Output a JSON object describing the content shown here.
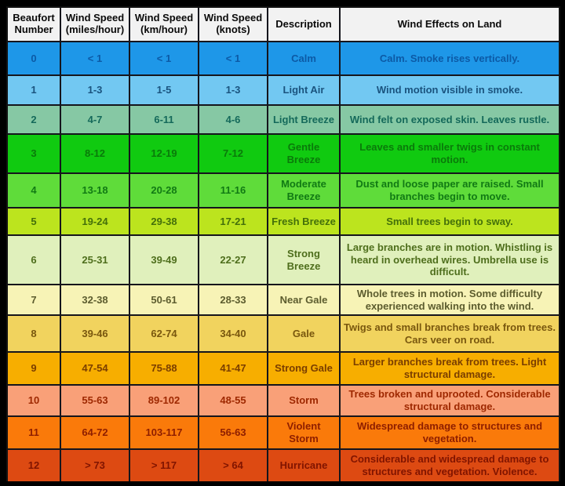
{
  "chart_data": {
    "type": "table",
    "columns": [
      "Beaufort Number",
      "Wind Speed (miles/hour)",
      "Wind Speed (km/hour)",
      "Wind Speed (knots)",
      "Description",
      "Wind Effects on Land"
    ],
    "rows": [
      {
        "number": "0",
        "mph": "< 1",
        "kmh": "< 1",
        "knots": "< 1",
        "description": "Calm",
        "effects": "Calm. Smoke rises vertically.",
        "bg": "#1e97e8",
        "fg": "#0c5aa6"
      },
      {
        "number": "1",
        "mph": "1-3",
        "kmh": "1-5",
        "knots": "1-3",
        "description": "Light Air",
        "effects": "Wind motion visible in smoke.",
        "bg": "#72c8f2",
        "fg": "#1a537e"
      },
      {
        "number": "2",
        "mph": "4-7",
        "kmh": "6-11",
        "knots": "4-6",
        "description": "Light Breeze",
        "effects": "Wind felt on exposed skin. Leaves rustle.",
        "bg": "#86c8a4",
        "fg": "#14695a"
      },
      {
        "number": "3",
        "mph": "8-12",
        "kmh": "12-19",
        "knots": "7-12",
        "description": "Gentle Breeze",
        "effects": "Leaves and smaller twigs in constant motion.",
        "bg": "#10ca10",
        "fg": "#0a7a0a"
      },
      {
        "number": "4",
        "mph": "13-18",
        "kmh": "20-28",
        "knots": "11-16",
        "description": "Moderate Breeze",
        "effects": "Dust and loose paper are raised. Small branches begin to move.",
        "bg": "#5fdc3a",
        "fg": "#117a14"
      },
      {
        "number": "5",
        "mph": "19-24",
        "kmh": "29-38",
        "knots": "17-21",
        "description": "Fresh Breeze",
        "effects": "Small trees begin to sway.",
        "bg": "#bce41e",
        "fg": "#44700a"
      },
      {
        "number": "6",
        "mph": "25-31",
        "kmh": "39-49",
        "knots": "22-27",
        "description": "Strong Breeze",
        "effects": "Large branches are in motion. Whistling is heard in overhead wires. Umbrella use is difficult.",
        "bg": "#e0f0bc",
        "fg": "#4e6e1c"
      },
      {
        "number": "7",
        "mph": "32-38",
        "kmh": "50-61",
        "knots": "28-33",
        "description": "Near Gale",
        "effects": "Whole trees in motion. Some difficulty experienced walking into the wind.",
        "bg": "#f7f3b6",
        "fg": "#5c5c2e"
      },
      {
        "number": "8",
        "mph": "39-46",
        "kmh": "62-74",
        "knots": "34-40",
        "description": "Gale",
        "effects": "Twigs and small branches break from trees. Cars veer on road.",
        "bg": "#f1d35e",
        "fg": "#79570e"
      },
      {
        "number": "9",
        "mph": "47-54",
        "kmh": "75-88",
        "knots": "41-47",
        "description": "Strong Gale",
        "effects": "Larger branches break from trees. Light structural damage.",
        "bg": "#f7ae00",
        "fg": "#7a3e00"
      },
      {
        "number": "10",
        "mph": "55-63",
        "kmh": "89-102",
        "knots": "48-55",
        "description": "Storm",
        "effects": "Trees broken and uprooted. Considerable structural damage.",
        "bg": "#f9a078",
        "fg": "#9e2800"
      },
      {
        "number": "11",
        "mph": "64-72",
        "kmh": "103-117",
        "knots": "56-63",
        "description": "Violent Storm",
        "effects": "Widespread damage to structures and vegetation.",
        "bg": "#fa7a0a",
        "fg": "#8e1e00"
      },
      {
        "number": "12",
        "mph": "> 73",
        "kmh": "> 117",
        "knots": "> 64",
        "description": "Hurricane",
        "effects": "Considerable and widespread damage to structures and vegetation. Violence.",
        "bg": "#dd4a12",
        "fg": "#801400"
      }
    ]
  }
}
